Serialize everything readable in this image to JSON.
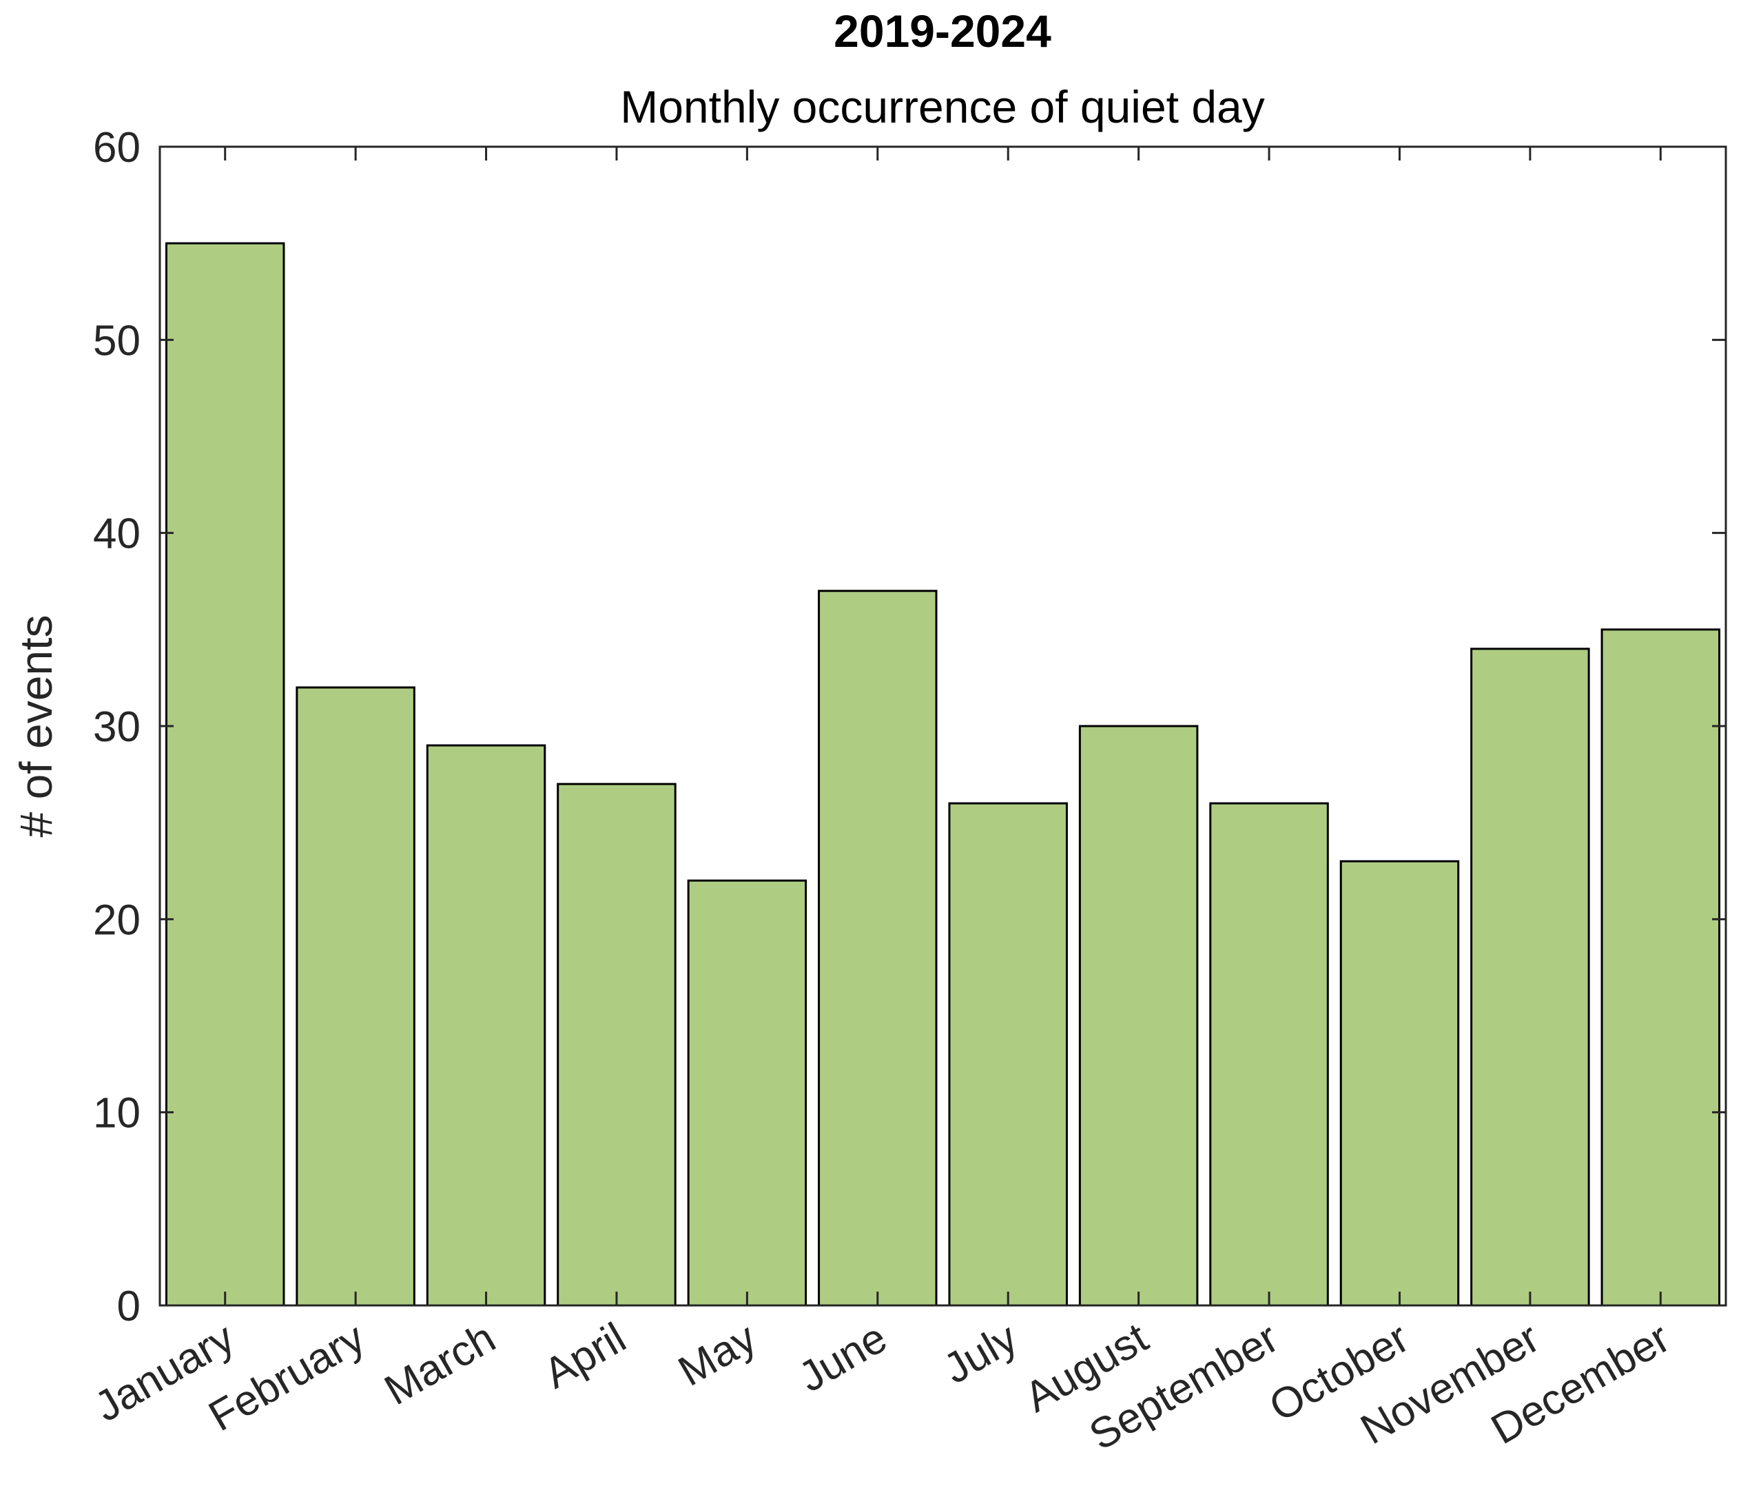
{
  "chart_data": {
    "type": "bar",
    "title": "2019-2024",
    "subtitle": "Monthly occurrence of quiet day",
    "xlabel": "",
    "ylabel": "# of events",
    "categories": [
      "January",
      "February",
      "March",
      "April",
      "May",
      "June",
      "July",
      "August",
      "September",
      "October",
      "November",
      "December"
    ],
    "values": [
      55,
      32,
      29,
      27,
      22,
      37,
      26,
      30,
      26,
      23,
      34,
      35
    ],
    "ylim": [
      0,
      60
    ],
    "yticks": [
      "0",
      "10",
      "20",
      "30",
      "40",
      "50",
      "60"
    ],
    "bar_color": "#aecd83",
    "edge_color": "#000000",
    "grid": false,
    "legend": "none"
  }
}
